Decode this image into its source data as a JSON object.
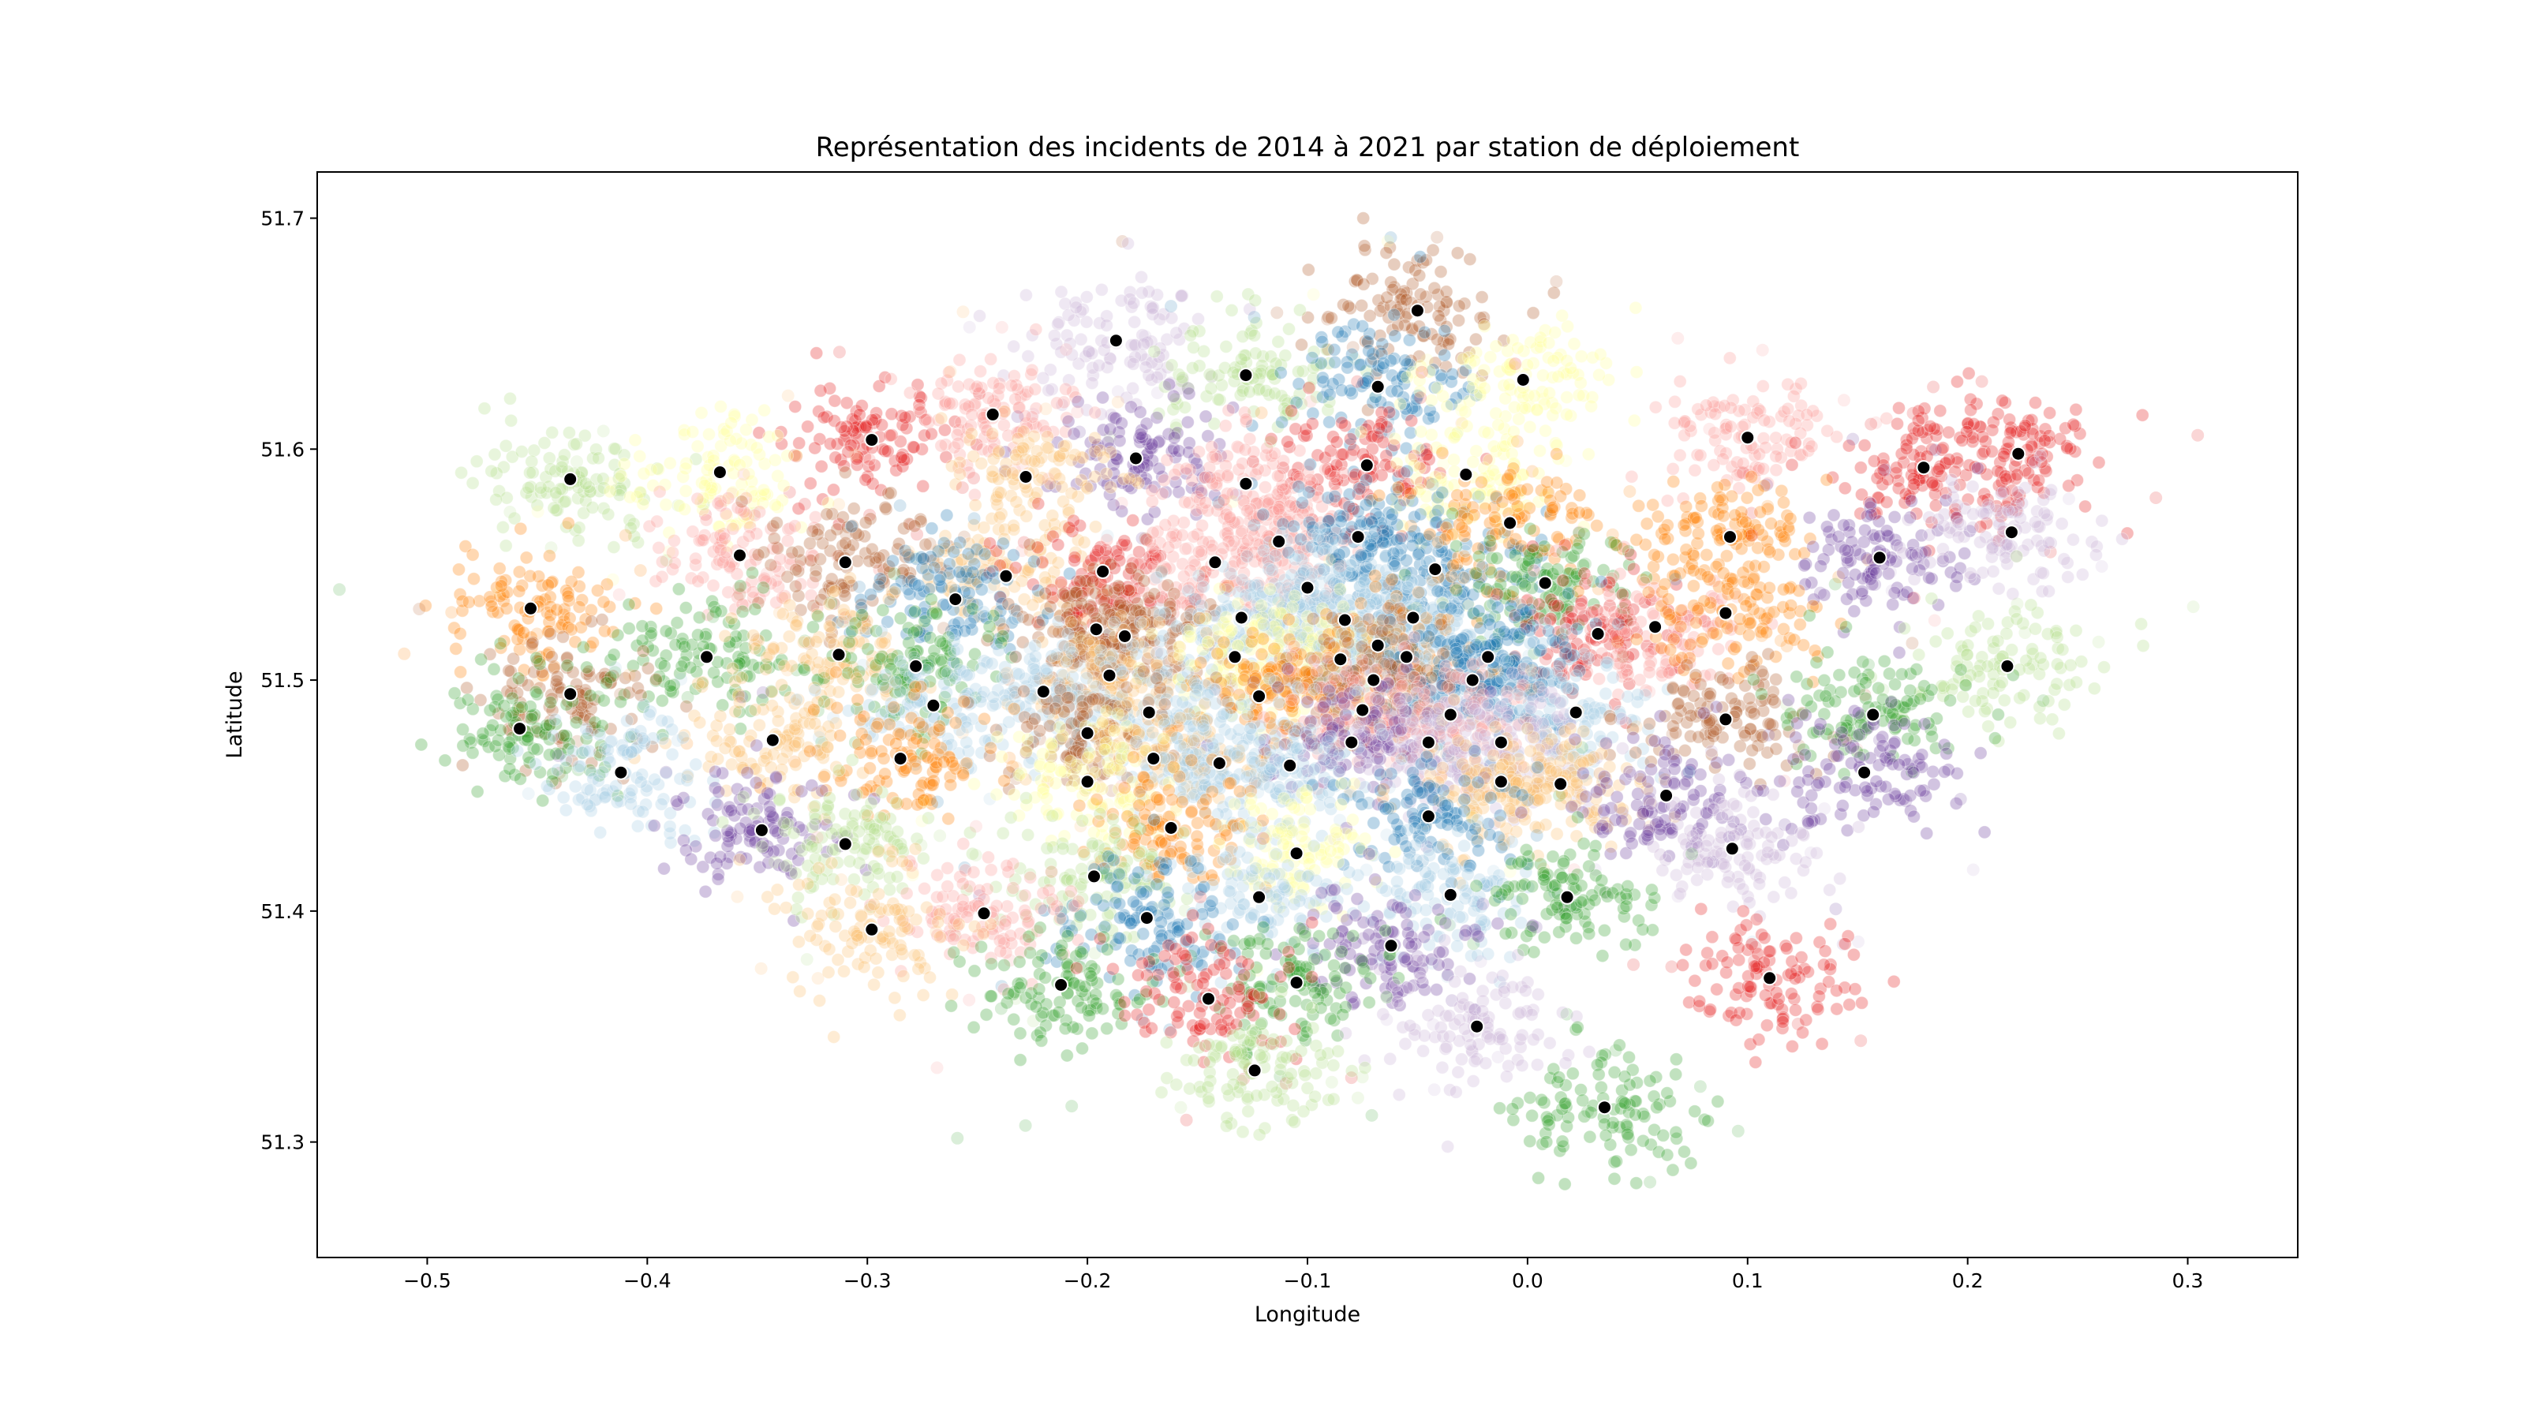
{
  "chart_data": {
    "type": "scatter",
    "title": "Représentation des incidents de 2014 à 2021 par station de déploiement",
    "xlabel": "Longitude",
    "ylabel": "Latitude",
    "xlim": [
      -0.55,
      0.35
    ],
    "ylim": [
      51.25,
      51.72
    ],
    "xticks": [
      -0.5,
      -0.4,
      -0.3,
      -0.2,
      -0.1,
      0.0,
      0.1,
      0.2,
      0.3
    ],
    "xtick_labels": [
      "−0.5",
      "−0.4",
      "−0.3",
      "−0.2",
      "−0.1",
      "0.0",
      "0.1",
      "0.2",
      "0.3"
    ],
    "yticks": [
      51.3,
      51.4,
      51.5,
      51.6,
      51.7
    ],
    "ytick_labels": [
      "51.3",
      "51.4",
      "51.5",
      "51.6",
      "51.7"
    ],
    "grid": false,
    "legend": "none",
    "palette": [
      "#e41a1c",
      "#fb9a99",
      "#ff7f00",
      "#fdbf6f",
      "#33a02c",
      "#b2df8a",
      "#1f78b4",
      "#a6cee3",
      "#6a3d9a",
      "#cab2d6",
      "#b15928",
      "#ffff99"
    ],
    "series": [
      {
        "role": "incidents",
        "marker_color": "by station (palette)",
        "alpha": 0.3,
        "clusters": [
          {
            "station": [
              -0.05,
              51.66
            ],
            "color": "#b15928"
          },
          {
            "station": [
              -0.187,
              51.647
            ],
            "color": "#cab2d6"
          },
          {
            "station": [
              -0.128,
              51.632
            ],
            "color": "#b2df8a"
          },
          {
            "station": [
              -0.068,
              51.627
            ],
            "color": "#1f78b4"
          },
          {
            "station": [
              -0.002,
              51.63
            ],
            "color": "#ffff99"
          },
          {
            "station": [
              -0.298,
              51.604
            ],
            "color": "#e41a1c"
          },
          {
            "station": [
              -0.243,
              51.615
            ],
            "color": "#fb9a99"
          },
          {
            "station": [
              -0.178,
              51.596
            ],
            "color": "#6a3d9a"
          },
          {
            "station": [
              -0.073,
              51.593
            ],
            "color": "#e41a1c"
          },
          {
            "station": [
              -0.128,
              51.585
            ],
            "color": "#fb9a99"
          },
          {
            "station": [
              -0.028,
              51.589
            ],
            "color": "#ffff99"
          },
          {
            "station": [
              0.1,
              51.605
            ],
            "color": "#fb9a99"
          },
          {
            "station": [
              0.223,
              51.598
            ],
            "color": "#e41a1c"
          },
          {
            "station": [
              0.18,
              51.592
            ],
            "color": "#e41a1c"
          },
          {
            "station": [
              -0.435,
              51.587
            ],
            "color": "#b2df8a"
          },
          {
            "station": [
              -0.367,
              51.59
            ],
            "color": "#ffff99"
          },
          {
            "station": [
              -0.228,
              51.588
            ],
            "color": "#fdbf6f"
          },
          {
            "station": [
              -0.358,
              51.554
            ],
            "color": "#fb9a99"
          },
          {
            "station": [
              -0.31,
              51.551
            ],
            "color": "#b15928"
          },
          {
            "station": [
              -0.237,
              51.545
            ],
            "color": "#fdbf6f"
          },
          {
            "station": [
              -0.193,
              51.547
            ],
            "color": "#e41a1c"
          },
          {
            "station": [
              -0.142,
              51.551
            ],
            "color": "#fb9a99"
          },
          {
            "station": [
              -0.113,
              51.56
            ],
            "color": "#fb9a99"
          },
          {
            "station": [
              -0.077,
              51.562
            ],
            "color": "#1f78b4"
          },
          {
            "station": [
              -0.042,
              51.548
            ],
            "color": "#1f78b4"
          },
          {
            "station": [
              -0.008,
              51.568
            ],
            "color": "#ff7f00"
          },
          {
            "station": [
              0.092,
              51.562
            ],
            "color": "#ff7f00"
          },
          {
            "station": [
              0.16,
              51.553
            ],
            "color": "#6a3d9a"
          },
          {
            "station": [
              0.22,
              51.564
            ],
            "color": "#cab2d6"
          },
          {
            "station": [
              -0.453,
              51.531
            ],
            "color": "#ff7f00"
          },
          {
            "station": [
              -0.26,
              51.535
            ],
            "color": "#1f78b4"
          },
          {
            "station": [
              -0.1,
              51.54
            ],
            "color": "#a6cee3"
          },
          {
            "station": [
              0.008,
              51.542
            ],
            "color": "#33a02c"
          },
          {
            "station": [
              -0.196,
              51.522
            ],
            "color": "#b15928"
          },
          {
            "station": [
              -0.183,
              51.519
            ],
            "color": "#b15928"
          },
          {
            "station": [
              -0.13,
              51.527
            ],
            "color": "#a6cee3"
          },
          {
            "station": [
              -0.083,
              51.526
            ],
            "color": "#a6cee3"
          },
          {
            "station": [
              -0.052,
              51.527
            ],
            "color": "#a6cee3"
          },
          {
            "station": [
              0.032,
              51.52
            ],
            "color": "#e41a1c"
          },
          {
            "station": [
              0.058,
              51.523
            ],
            "color": "#fb9a99"
          },
          {
            "station": [
              0.09,
              51.529
            ],
            "color": "#ff7f00"
          },
          {
            "station": [
              -0.373,
              51.51
            ],
            "color": "#33a02c"
          },
          {
            "station": [
              -0.313,
              51.511
            ],
            "color": "#fdbf6f"
          },
          {
            "station": [
              -0.278,
              51.506
            ],
            "color": "#33a02c"
          },
          {
            "station": [
              -0.19,
              51.502
            ],
            "color": "#fdbf6f"
          },
          {
            "station": [
              -0.133,
              51.51
            ],
            "color": "#ffff99"
          },
          {
            "station": [
              -0.085,
              51.509
            ],
            "color": "#ffff99"
          },
          {
            "station": [
              -0.068,
              51.515
            ],
            "color": "#ff7f00"
          },
          {
            "station": [
              -0.055,
              51.51
            ],
            "color": "#a6cee3"
          },
          {
            "station": [
              -0.018,
              51.51
            ],
            "color": "#1f78b4"
          },
          {
            "station": [
              -0.025,
              51.5
            ],
            "color": "#1f78b4"
          },
          {
            "station": [
              -0.07,
              51.5
            ],
            "color": "#b15928"
          },
          {
            "station": [
              0.218,
              51.506
            ],
            "color": "#b2df8a"
          },
          {
            "station": [
              -0.435,
              51.494
            ],
            "color": "#b15928"
          },
          {
            "station": [
              -0.22,
              51.495
            ],
            "color": "#a6cee3"
          },
          {
            "station": [
              -0.122,
              51.493
            ],
            "color": "#ff7f00"
          },
          {
            "station": [
              -0.458,
              51.479
            ],
            "color": "#33a02c"
          },
          {
            "station": [
              -0.343,
              51.474
            ],
            "color": "#fdbf6f"
          },
          {
            "station": [
              -0.27,
              51.489
            ],
            "color": "#a6cee3"
          },
          {
            "station": [
              -0.172,
              51.486
            ],
            "color": "#a6cee3"
          },
          {
            "station": [
              -0.075,
              51.487
            ],
            "color": "#fb9a99"
          },
          {
            "station": [
              -0.035,
              51.485
            ],
            "color": "#fb9a99"
          },
          {
            "station": [
              0.022,
              51.486
            ],
            "color": "#a6cee3"
          },
          {
            "station": [
              0.09,
              51.483
            ],
            "color": "#b15928"
          },
          {
            "station": [
              0.157,
              51.485
            ],
            "color": "#33a02c"
          },
          {
            "station": [
              -0.2,
              51.477
            ],
            "color": "#b15928"
          },
          {
            "station": [
              -0.08,
              51.473
            ],
            "color": "#6a3d9a"
          },
          {
            "station": [
              -0.045,
              51.473
            ],
            "color": "#cab2d6"
          },
          {
            "station": [
              -0.012,
              51.473
            ],
            "color": "#cab2d6"
          },
          {
            "station": [
              -0.285,
              51.466
            ],
            "color": "#ff7f00"
          },
          {
            "station": [
              -0.17,
              51.466
            ],
            "color": "#fdbf6f"
          },
          {
            "station": [
              -0.14,
              51.464
            ],
            "color": "#a6cee3"
          },
          {
            "station": [
              -0.108,
              51.463
            ],
            "color": "#a6cee3"
          },
          {
            "station": [
              -0.412,
              51.46
            ],
            "color": "#a6cee3"
          },
          {
            "station": [
              -0.2,
              51.456
            ],
            "color": "#ffff99"
          },
          {
            "station": [
              -0.012,
              51.456
            ],
            "color": "#fdbf6f"
          },
          {
            "station": [
              0.015,
              51.455
            ],
            "color": "#fdbf6f"
          },
          {
            "station": [
              0.153,
              51.46
            ],
            "color": "#6a3d9a"
          },
          {
            "station": [
              0.063,
              51.45
            ],
            "color": "#6a3d9a"
          },
          {
            "station": [
              -0.045,
              51.441
            ],
            "color": "#1f78b4"
          },
          {
            "station": [
              -0.162,
              51.436
            ],
            "color": "#ff7f00"
          },
          {
            "station": [
              -0.348,
              51.435
            ],
            "color": "#6a3d9a"
          },
          {
            "station": [
              -0.31,
              51.429
            ],
            "color": "#b2df8a"
          },
          {
            "station": [
              -0.105,
              51.425
            ],
            "color": "#ffff99"
          },
          {
            "station": [
              0.093,
              51.427
            ],
            "color": "#cab2d6"
          },
          {
            "station": [
              -0.197,
              51.415
            ],
            "color": "#b2df8a"
          },
          {
            "station": [
              -0.035,
              51.407
            ],
            "color": "#a6cee3"
          },
          {
            "station": [
              0.018,
              51.406
            ],
            "color": "#33a02c"
          },
          {
            "station": [
              -0.122,
              51.406
            ],
            "color": "#a6cee3"
          },
          {
            "station": [
              -0.173,
              51.397
            ],
            "color": "#1f78b4"
          },
          {
            "station": [
              -0.247,
              51.399
            ],
            "color": "#fb9a99"
          },
          {
            "station": [
              -0.298,
              51.392
            ],
            "color": "#fdbf6f"
          },
          {
            "station": [
              -0.062,
              51.385
            ],
            "color": "#6a3d9a"
          },
          {
            "station": [
              0.11,
              51.371
            ],
            "color": "#e41a1c"
          },
          {
            "station": [
              -0.212,
              51.368
            ],
            "color": "#33a02c"
          },
          {
            "station": [
              -0.105,
              51.369
            ],
            "color": "#33a02c"
          },
          {
            "station": [
              -0.145,
              51.362
            ],
            "color": "#e41a1c"
          },
          {
            "station": [
              -0.023,
              51.35
            ],
            "color": "#cab2d6"
          },
          {
            "station": [
              -0.124,
              51.331
            ],
            "color": "#b2df8a"
          },
          {
            "station": [
              0.035,
              51.315
            ],
            "color": "#33a02c"
          }
        ]
      },
      {
        "role": "stations",
        "marker_color": "#000000",
        "marker_edge": "#ffffff"
      }
    ]
  }
}
